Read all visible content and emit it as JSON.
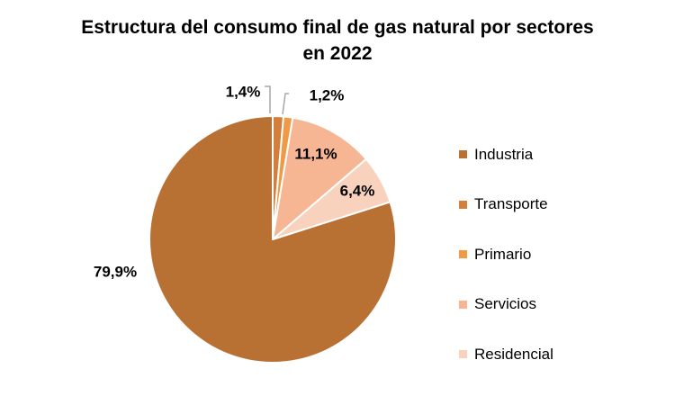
{
  "chart_data": {
    "type": "pie",
    "title": [
      "Estructura del consumo final de gas natural por sectores",
      "en 2022"
    ],
    "slices": [
      {
        "name": "Industria",
        "value": 79.9,
        "label": "79,9%",
        "color": "#B87033"
      },
      {
        "name": "Transporte",
        "value": 1.4,
        "label": "1,4%",
        "color": "#D47E3C"
      },
      {
        "name": "Primario",
        "value": 1.2,
        "label": "1,2%",
        "color": "#F19A45"
      },
      {
        "name": "Servicios",
        "value": 11.1,
        "label": "11,1%",
        "color": "#F6B693"
      },
      {
        "name": "Residencial",
        "value": 6.4,
        "label": "6,4%",
        "color": "#F9D2BE"
      }
    ],
    "legend_position": "right"
  }
}
